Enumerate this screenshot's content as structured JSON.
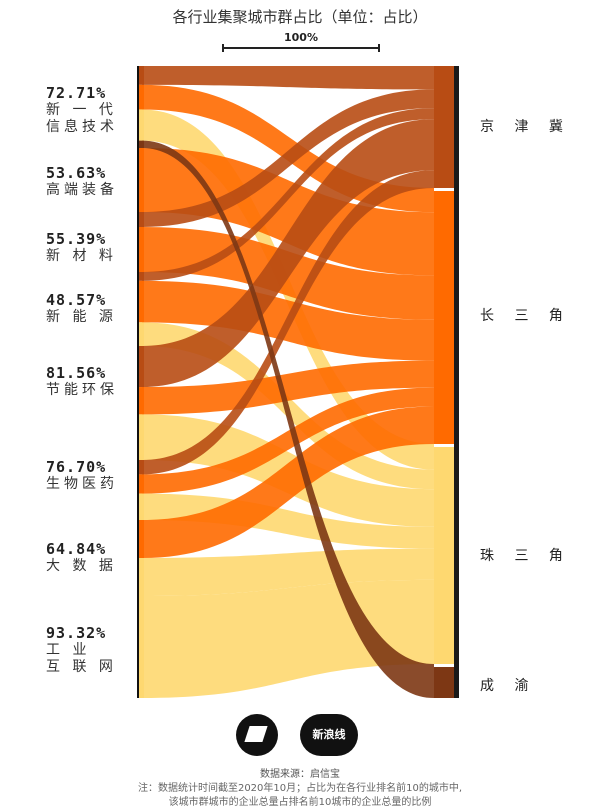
{
  "title": "各行业集聚城市群占比（单位：占比）",
  "scale_label": "100%",
  "logo2_text": "新浪线",
  "source": "数据来源：启信宝",
  "note_line1": "注：数据统计时间截至2020年10月；占比为在各行业排名前10的城市中,",
  "note_line2": "该城市群城市的企业总量占排名前10城市的企业总量的比例",
  "colors": {
    "京津冀": "#b84c14",
    "长三角": "#ff6a00",
    "珠三角": "#fed870",
    "成渝": "#7d3714"
  },
  "chart_data": {
    "type": "sankey",
    "title": "各行业集聚城市群占比（单位：占比）",
    "industries": [
      {
        "name": "新一代信息技术",
        "label_lines": [
          "新 一 代",
          "信息技术"
        ],
        "share": "72.71%",
        "flows": {
          "京津冀": 0.23,
          "长三角": 0.3,
          "珠三角": 0.38,
          "成渝": 0.09
        }
      },
      {
        "name": "高端装备",
        "label_lines": [
          "高端装备"
        ],
        "share": "53.63%",
        "flows": {
          "京津冀": 0.0,
          "长三角": 1.0,
          "珠三角": 0.0,
          "成渝": 0.0
        }
      },
      {
        "name": "新材料",
        "label_lines": [
          "新 材 料"
        ],
        "share": "55.39%",
        "flows": {
          "京津冀": 0.25,
          "长三角": 0.75,
          "珠三角": 0.0,
          "成渝": 0.0
        }
      },
      {
        "name": "新能源",
        "label_lines": [
          "新 能 源"
        ],
        "share": "48.57%",
        "flows": {
          "京津冀": 0.12,
          "长三角": 0.56,
          "珠三角": 0.32,
          "成渝": 0.0
        }
      },
      {
        "name": "节能环保",
        "label_lines": [
          "节能环保"
        ],
        "share": "81.56%",
        "flows": {
          "京津冀": 0.36,
          "长三角": 0.24,
          "珠三角": 0.4,
          "成渝": 0.0
        }
      },
      {
        "name": "生物医药",
        "label_lines": [
          "生物医药"
        ],
        "share": "76.70%",
        "flows": {
          "京津冀": 0.24,
          "长三角": 0.32,
          "珠三角": 0.44,
          "成渝": 0.0
        }
      },
      {
        "name": "大数据",
        "label_lines": [
          "大 数 据"
        ],
        "share": "64.84%",
        "flows": {
          "京津冀": 0.0,
          "长三角": 0.5,
          "珠三角": 0.5,
          "成渝": 0.0
        }
      },
      {
        "name": "工业互联网",
        "label_lines": [
          "工    业",
          "互 联 网"
        ],
        "share": "93.32%",
        "flows": {
          "京津冀": 0.0,
          "长三角": 0.0,
          "珠三角": 1.0,
          "成渝": 0.0
        }
      }
    ],
    "regions": [
      "京津冀",
      "长三角",
      "珠三角",
      "成渝"
    ],
    "region_labels": [
      "京 津 冀",
      "长 三 角",
      "珠 三 角",
      "成    渝"
    ]
  }
}
